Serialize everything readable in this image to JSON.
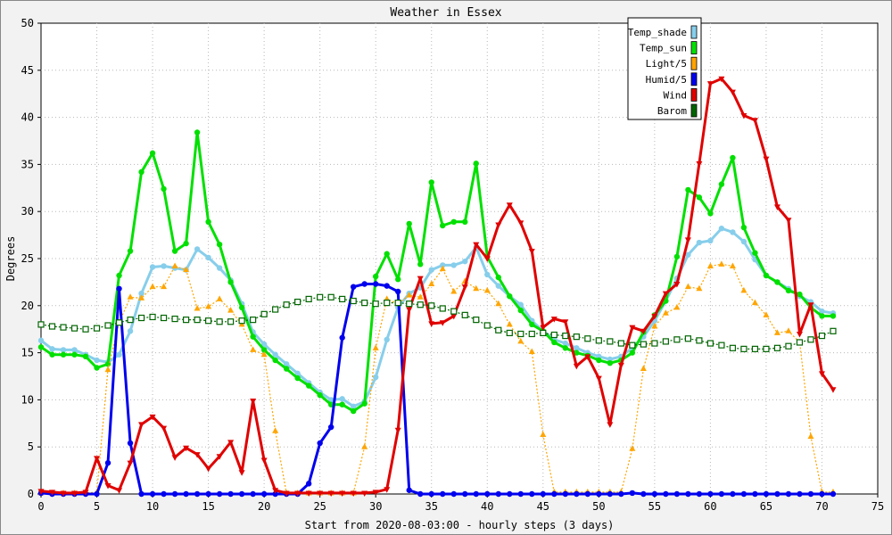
{
  "chart_data": {
    "type": "line",
    "title": "Weather in Essex",
    "xlabel": "Start from 2020-08-03:00 - hourly steps (3 days)",
    "ylabel": "Degrees",
    "xlim": [
      0,
      75
    ],
    "ylim": [
      0,
      50
    ],
    "x_ticks": [
      0,
      5,
      10,
      15,
      20,
      25,
      30,
      35,
      40,
      45,
      50,
      55,
      60,
      65,
      70,
      75
    ],
    "y_ticks": [
      0,
      5,
      10,
      15,
      20,
      25,
      30,
      35,
      40,
      45,
      50
    ],
    "grid": true,
    "legend_position": "top-right",
    "x": [
      0,
      1,
      2,
      3,
      4,
      5,
      6,
      7,
      8,
      9,
      10,
      11,
      12,
      13,
      14,
      15,
      16,
      17,
      18,
      19,
      20,
      21,
      22,
      23,
      24,
      25,
      26,
      27,
      28,
      29,
      30,
      31,
      32,
      33,
      34,
      35,
      36,
      37,
      38,
      39,
      40,
      41,
      42,
      43,
      44,
      45,
      46,
      47,
      48,
      49,
      50,
      51,
      52,
      53,
      54,
      55,
      56,
      57,
      58,
      59,
      60,
      61,
      62,
      63,
      64,
      65,
      66,
      67,
      68,
      69,
      70,
      71
    ],
    "series": [
      {
        "name": "Temp_shade",
        "color": "#87ceeb",
        "marker": "circle",
        "style": "solid",
        "values": [
          16.3,
          15.4,
          15.3,
          15.3,
          14.8,
          14.2,
          14.0,
          14.8,
          17.3,
          21.3,
          24.1,
          24.2,
          24.0,
          23.8,
          26.0,
          25.1,
          24.0,
          22.7,
          20.2,
          17.2,
          15.9,
          14.8,
          13.8,
          12.8,
          11.8,
          10.8,
          10.0,
          10.1,
          9.3,
          9.8,
          12.4,
          16.4,
          19.8,
          21.3,
          21.9,
          23.8,
          24.3,
          24.3,
          24.7,
          26.2,
          23.3,
          22.1,
          21.0,
          20.1,
          18.4,
          17.3,
          16.4,
          16.0,
          15.5,
          15.0,
          14.6,
          14.3,
          14.6,
          15.5,
          16.7,
          18.4,
          20.5,
          22.9,
          25.4,
          26.7,
          26.9,
          28.2,
          27.8,
          26.8,
          24.9,
          23.2,
          22.5,
          21.8,
          21.0,
          20.4,
          19.4,
          19.2
        ]
      },
      {
        "name": "Temp_sun",
        "color": "#00e000",
        "marker": "circle",
        "style": "solid",
        "values": [
          15.6,
          14.8,
          14.8,
          14.8,
          14.6,
          13.4,
          13.8,
          23.2,
          25.8,
          34.2,
          36.2,
          32.4,
          25.8,
          26.6,
          38.4,
          28.9,
          26.5,
          22.5,
          19.8,
          16.7,
          15.3,
          14.2,
          13.3,
          12.3,
          11.5,
          10.5,
          9.5,
          9.5,
          8.8,
          9.6,
          23.1,
          25.5,
          22.8,
          28.7,
          24.4,
          33.1,
          28.5,
          28.9,
          28.9,
          35.1,
          25.2,
          23.0,
          21.0,
          19.5,
          18.0,
          17.3,
          16.1,
          15.5,
          15.0,
          14.7,
          14.2,
          13.9,
          14.2,
          15.0,
          17.2,
          19.0,
          20.5,
          25.2,
          32.3,
          31.5,
          29.8,
          32.9,
          35.7,
          28.3,
          25.6,
          23.2,
          22.5,
          21.6,
          21.2,
          19.8,
          18.9,
          18.9
        ]
      },
      {
        "name": "Light/5",
        "color": "#ffa500",
        "marker": "triangle",
        "style": "dotted",
        "values": [
          0.1,
          0.1,
          0.1,
          0.1,
          0.1,
          0.2,
          13.2,
          18.2,
          20.9,
          20.8,
          22.0,
          22.0,
          24.2,
          23.8,
          19.7,
          19.9,
          20.7,
          19.5,
          18.0,
          15.3,
          14.8,
          6.7,
          0.1,
          0.1,
          0.1,
          0.1,
          0.1,
          0.1,
          0.1,
          5.0,
          15.5,
          20.7,
          20.2,
          21.1,
          20.9,
          22.3,
          23.9,
          21.5,
          22.6,
          21.8,
          21.6,
          20.2,
          18.0,
          16.2,
          15.1,
          6.3,
          0.2,
          0.2,
          0.2,
          0.2,
          0.2,
          0.2,
          0.2,
          4.8,
          13.3,
          17.8,
          19.2,
          19.8,
          22.0,
          21.8,
          24.2,
          24.4,
          24.2,
          21.6,
          20.3,
          19.0,
          17.1,
          17.3,
          16.1,
          6.1,
          0.2,
          0.2
        ]
      },
      {
        "name": "Humid/5",
        "color": "#0000ee",
        "marker": "circle",
        "style": "solid",
        "values": [
          0.1,
          0.0,
          0.0,
          0.0,
          0.0,
          0.0,
          3.3,
          21.8,
          5.4,
          0.0,
          0.0,
          0.0,
          0.0,
          0.0,
          0.0,
          0.0,
          0.0,
          0.0,
          0.0,
          0.0,
          0.0,
          0.0,
          0.0,
          0.0,
          1.1,
          5.4,
          7.1,
          16.6,
          22.0,
          22.3,
          22.3,
          22.1,
          21.5,
          0.4,
          0.0,
          0.0,
          0.0,
          0.0,
          0.0,
          0.0,
          0.0,
          0.0,
          0.0,
          0.0,
          0.0,
          0.0,
          0.0,
          0.0,
          0.0,
          0.0,
          0.0,
          0.0,
          0.0,
          0.1,
          0.0,
          0.0,
          0.0,
          0.0,
          0.0,
          0.0,
          0.0,
          0.0,
          0.0,
          0.0,
          0.0,
          0.0,
          0.0,
          0.0,
          0.0,
          0.0,
          0.0,
          0.0
        ]
      },
      {
        "name": "Wind",
        "color": "#e00000",
        "marker": "triangle-down",
        "style": "solid",
        "values": [
          0.3,
          0.2,
          0.1,
          0.1,
          0.2,
          3.8,
          0.9,
          0.4,
          3.3,
          7.4,
          8.2,
          7.0,
          3.9,
          4.9,
          4.2,
          2.7,
          4.0,
          5.5,
          2.3,
          9.9,
          3.6,
          0.4,
          0.1,
          0.1,
          0.1,
          0.1,
          0.1,
          0.1,
          0.1,
          0.1,
          0.2,
          0.5,
          6.8,
          19.6,
          22.9,
          18.1,
          18.2,
          18.9,
          22.0,
          26.5,
          25.0,
          28.6,
          30.7,
          28.8,
          25.8,
          17.7,
          18.6,
          18.3,
          13.6,
          14.6,
          12.3,
          7.4,
          13.7,
          17.7,
          17.3,
          18.9,
          21.3,
          22.3,
          27.0,
          35.1,
          43.6,
          44.1,
          42.7,
          40.2,
          39.7,
          35.6,
          30.5,
          29.1,
          17.0,
          20.1,
          12.8,
          11.1
        ]
      },
      {
        "name": "Barom",
        "color": "#006400",
        "marker": "square-open",
        "style": "dotted",
        "values": [
          18.0,
          17.8,
          17.7,
          17.6,
          17.5,
          17.6,
          17.9,
          18.2,
          18.5,
          18.7,
          18.8,
          18.7,
          18.6,
          18.5,
          18.5,
          18.4,
          18.3,
          18.3,
          18.4,
          18.5,
          19.1,
          19.6,
          20.1,
          20.4,
          20.7,
          20.9,
          20.9,
          20.7,
          20.5,
          20.3,
          20.2,
          20.3,
          20.3,
          20.2,
          20.1,
          20.0,
          19.7,
          19.4,
          19.0,
          18.5,
          17.9,
          17.4,
          17.1,
          17.0,
          17.0,
          17.1,
          16.9,
          16.8,
          16.7,
          16.5,
          16.3,
          16.2,
          16.0,
          15.8,
          15.9,
          16.0,
          16.2,
          16.4,
          16.5,
          16.3,
          16.0,
          15.8,
          15.5,
          15.4,
          15.4,
          15.4,
          15.5,
          15.7,
          16.1,
          16.4,
          16.8,
          17.3
        ]
      }
    ]
  }
}
